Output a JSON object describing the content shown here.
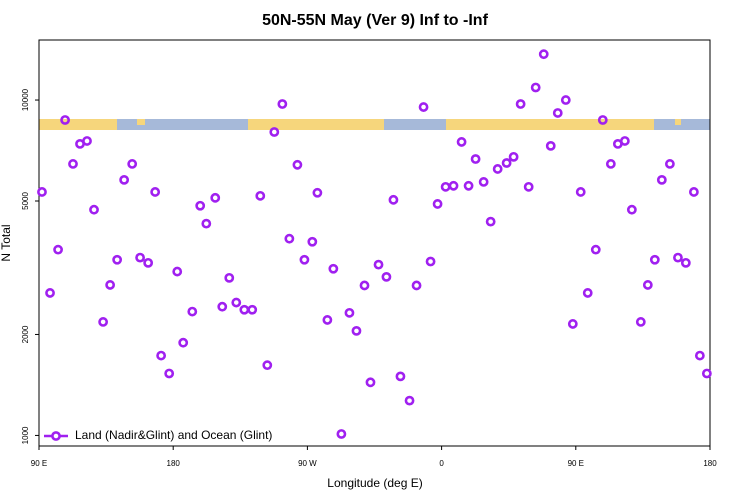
{
  "chart_data": {
    "type": "scatter",
    "title": "50N-55N May (Ver 9)   Inf to -Inf",
    "x_label": "Longitude (deg E)",
    "y_label": "N Total",
    "y_log": true,
    "legend_position": "bottom left",
    "xlim": [
      90,
      540
    ],
    "ylim": [
      930,
      15100
    ],
    "xticks": [
      {
        "value": 90,
        "label": "90 E"
      },
      {
        "value": 180,
        "label": "180"
      },
      {
        "value": 270,
        "label": "90 W"
      },
      {
        "value": 360,
        "label": "0"
      },
      {
        "value": 450,
        "label": "90 E"
      },
      {
        "value": 540,
        "label": "180"
      }
    ],
    "yticks": [
      1000,
      2000,
      5000,
      10000
    ],
    "series": [
      {
        "name": "Land (Nadir&Glint) and Ocean (Glint)",
        "color": "#a020f0",
        "x": [
          92.0,
          97.4,
          102.8,
          107.5,
          112.8,
          117.5,
          122.2,
          126.9,
          133.0,
          137.7,
          142.4,
          147.1,
          152.5,
          157.8,
          163.2,
          167.9,
          171.9,
          177.3,
          182.7,
          186.7,
          192.8,
          198.1,
          202.2,
          208.2,
          212.9,
          217.6,
          222.3,
          227.7,
          233.0,
          238.4,
          243.1,
          247.8,
          253.2,
          257.9,
          263.3,
          268.0,
          273.3,
          276.7,
          283.4,
          287.4,
          292.8,
          298.2,
          302.9,
          308.3,
          312.3,
          317.7,
          323.0,
          327.7,
          332.4,
          338.5,
          343.2,
          347.9,
          352.6,
          357.3,
          362.7,
          368.0,
          373.4,
          378.1,
          382.8,
          388.2,
          392.9,
          397.6,
          403.6,
          408.3,
          413.0,
          418.4,
          423.1,
          428.5,
          433.2,
          437.9,
          443.3,
          448.0,
          453.3,
          458.0,
          463.4,
          468.1,
          473.5,
          478.2,
          482.9,
          487.6,
          493.6,
          498.3,
          503.0,
          507.7,
          513.1,
          518.5,
          523.8,
          529.2,
          533.2,
          537.9
        ],
        "values": [
          5320,
          2660,
          3580,
          8720,
          6450,
          7400,
          7550,
          4710,
          2180,
          2810,
          3340,
          5780,
          6450,
          3390,
          3270,
          5320,
          1730,
          1530,
          3080,
          1890,
          2340,
          4840,
          4280,
          5110,
          2420,
          2950,
          2490,
          2370,
          2370,
          5180,
          1620,
          8030,
          9730,
          3860,
          6410,
          3340,
          3780,
          5290,
          2210,
          3140,
          1010,
          2320,
          2050,
          2800,
          1440,
          3230,
          2970,
          5040,
          1500,
          1270,
          2800,
          9530,
          3300,
          4900,
          5510,
          5550,
          7500,
          5550,
          6670,
          5700,
          4340,
          6230,
          6490,
          6770,
          9730,
          5510,
          10900,
          13700,
          7300,
          9150,
          10000,
          2150,
          5320,
          2660,
          3580,
          8720,
          6450,
          7400,
          7550,
          4710,
          2180,
          2810,
          3340,
          5780,
          6450,
          3390,
          3270,
          5320,
          1730,
          1530
        ]
      }
    ]
  }
}
